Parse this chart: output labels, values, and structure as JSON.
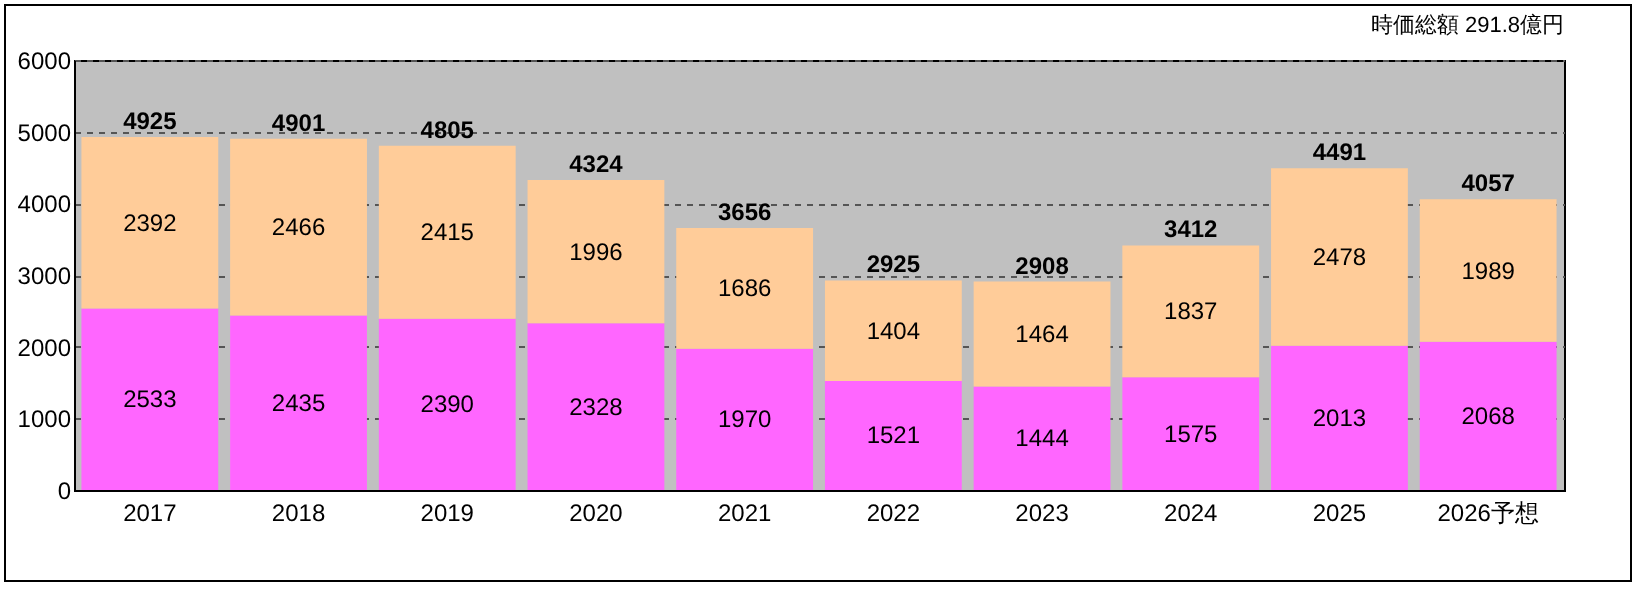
{
  "chart_data": {
    "type": "bar",
    "stacked": true,
    "categories": [
      "2017",
      "2018",
      "2019",
      "2020",
      "2021",
      "2022",
      "2023",
      "2024",
      "2025",
      "2026予想"
    ],
    "series": [
      {
        "color": "#ff66ff",
        "values": [
          2533,
          2435,
          2390,
          2328,
          1970,
          1521,
          1444,
          1575,
          2013,
          2068
        ]
      },
      {
        "color": "#ffcc99",
        "values": [
          2392,
          2466,
          2415,
          1996,
          1686,
          1404,
          1464,
          1837,
          2478,
          1989
        ]
      }
    ],
    "data_labels": true,
    "totals": [
      "4925",
      "4901",
      "4805",
      "4324",
      "3656",
      "2925",
      "2908",
      "3412",
      "4491",
      "4057"
    ],
    "ylim": [
      0,
      6000
    ],
    "yticks": [
      0,
      1000,
      2000,
      3000,
      4000,
      5000,
      6000
    ],
    "grid": "y",
    "legend": false,
    "annotations": [
      "時価総額  291.8億円"
    ]
  }
}
